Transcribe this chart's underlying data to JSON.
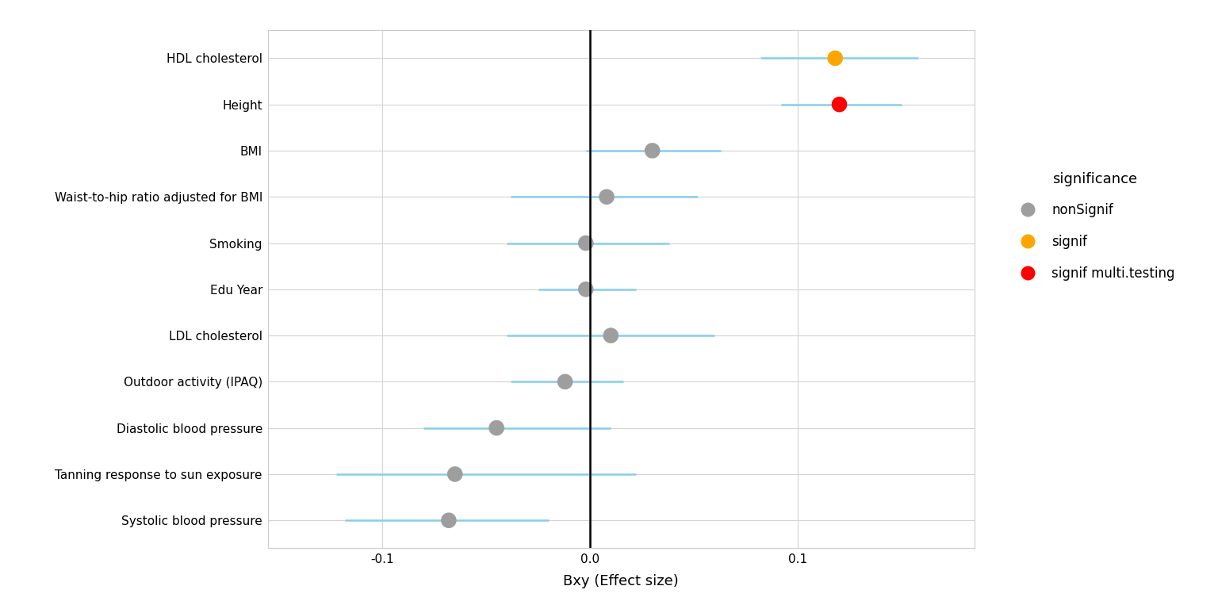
{
  "traits": [
    "HDL cholesterol",
    "Height",
    "BMI",
    "Waist-to-hip ratio adjusted for BMI",
    "Smoking",
    "Edu Year",
    "LDL cholesterol",
    "Outdoor activity (IPAQ)",
    "Diastolic blood pressure",
    "Tanning response to sun exposure",
    "Systolic blood pressure"
  ],
  "bxy": [
    0.118,
    0.12,
    0.03,
    0.008,
    -0.002,
    -0.002,
    0.01,
    -0.012,
    -0.045,
    -0.065,
    -0.068
  ],
  "ci_low": [
    0.082,
    0.092,
    -0.002,
    -0.038,
    -0.04,
    -0.025,
    -0.04,
    -0.038,
    -0.08,
    -0.122,
    -0.118
  ],
  "ci_high": [
    0.158,
    0.15,
    0.063,
    0.052,
    0.038,
    0.022,
    0.06,
    0.016,
    0.01,
    0.022,
    -0.02
  ],
  "significance": [
    "signif",
    "signif multi.testing",
    "nonSignif",
    "nonSignif",
    "nonSignif",
    "nonSignif",
    "nonSignif",
    "nonSignif",
    "nonSignif",
    "nonSignif",
    "nonSignif"
  ],
  "colors": {
    "nonSignif": "#9e9e9e",
    "signif": "#FFA500",
    "signif multi.testing": "#FF0000"
  },
  "error_bar_color": "#87CEEB",
  "vline_color": "#000000",
  "grid_color": "#d3d3d3",
  "xlabel": "Bxy (Effect size)",
  "legend_title": "significance",
  "legend_labels": [
    "nonSignif",
    "signif",
    "signif multi.testing"
  ],
  "xlim": [
    -0.155,
    0.185
  ],
  "xticks": [
    -0.1,
    0.0,
    0.1
  ],
  "xtick_labels": [
    "-0.1",
    "0.0",
    "0.1"
  ],
  "background_color": "#ffffff",
  "point_size": 200,
  "error_bar_linewidth": 1.8,
  "legend_markersize": 14
}
